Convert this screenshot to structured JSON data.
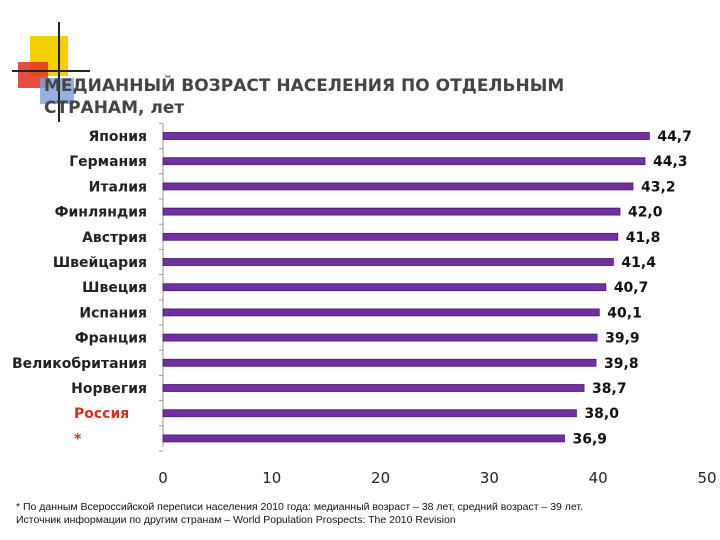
{
  "title_line1": "МЕДИАННЫЙ ВОЗРАСТ НАСЕЛЕНИЯ ПО ОТДЕЛЬНЫМ",
  "title_line2": "СТРАНАМ, лет",
  "colors": {
    "bar": "#7030a0",
    "highlight_label": "#d03020"
  },
  "chart_data": {
    "type": "bar",
    "orientation": "horizontal",
    "categories": [
      "Япония",
      "Германия",
      "Италия",
      "Финляндия",
      "Австрия",
      "Швейцария",
      "Швеция",
      "Испания",
      "Франция",
      "Великобритания",
      "Норвегия",
      "Россия",
      "*"
    ],
    "values": [
      44.7,
      44.3,
      43.2,
      42.0,
      41.8,
      41.4,
      40.7,
      40.1,
      39.9,
      39.8,
      38.7,
      38.0,
      36.9
    ],
    "value_labels": [
      "44,7",
      "44,3",
      "43,2",
      "42,0",
      "41,8",
      "41,4",
      "40,7",
      "40,1",
      "39,9",
      "39,8",
      "38,7",
      "38,0",
      "36,9"
    ],
    "highlight_categories": [
      "Россия",
      "*"
    ],
    "xlim": [
      0,
      50
    ],
    "xticks": [
      0,
      10,
      20,
      30,
      40,
      50
    ],
    "grid": false,
    "legend": "none"
  },
  "footnote_line1": "* По данным Всероссийской переписи населения 2010 года: медианный возраст – 38 лет, средний возраст – 39 лет.",
  "footnote_line2": "Источник информации по другим странам – World Population Prospects: The 2010 Revision"
}
